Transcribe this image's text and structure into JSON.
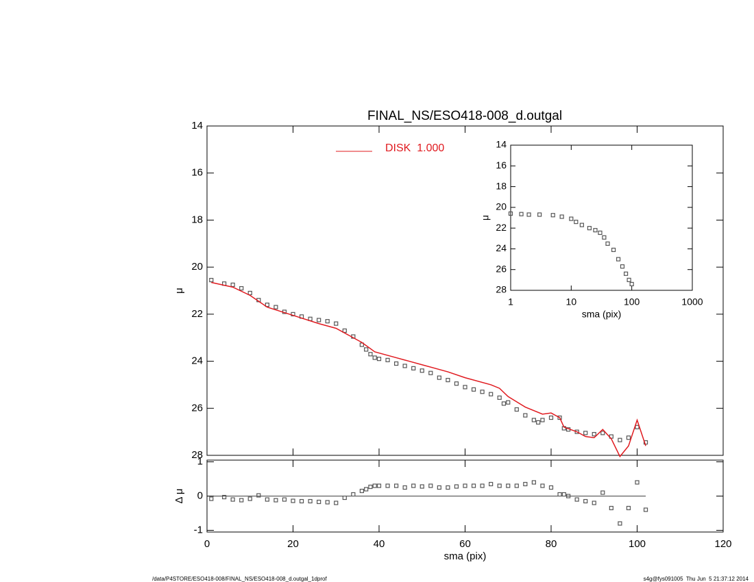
{
  "chart_data": [
    {
      "type": "scatter",
      "title": "FINAL_NS/ESO418-008_d.outgal",
      "ylabel": "μ",
      "xlim": [
        0,
        120
      ],
      "ylim": [
        14,
        28
      ],
      "y_inverted": true,
      "yticks": [
        14,
        16,
        18,
        20,
        22,
        24,
        26,
        28
      ],
      "series": [
        {
          "kind": "points",
          "color": "#555555",
          "x": [
            1,
            4,
            6,
            8,
            10,
            12,
            14,
            16,
            18,
            20,
            22,
            24,
            26,
            28,
            30,
            32,
            34,
            36,
            37,
            38,
            39,
            40,
            42,
            44,
            46,
            48,
            50,
            52,
            54,
            56,
            58,
            60,
            62,
            64,
            66,
            68,
            69,
            70,
            72,
            74,
            76,
            77,
            78,
            80,
            82,
            83,
            84,
            86,
            88,
            90,
            92,
            94,
            96,
            98,
            100,
            102
          ],
          "values": [
            20.55,
            20.7,
            20.75,
            20.9,
            21.1,
            21.4,
            21.6,
            21.7,
            21.9,
            22.0,
            22.1,
            22.2,
            22.25,
            22.3,
            22.4,
            22.7,
            22.95,
            23.3,
            23.5,
            23.7,
            23.85,
            23.9,
            23.95,
            24.1,
            24.2,
            24.3,
            24.4,
            24.5,
            24.7,
            24.8,
            24.95,
            25.1,
            25.2,
            25.3,
            25.4,
            25.55,
            25.8,
            25.75,
            26.05,
            26.3,
            26.5,
            26.6,
            26.5,
            26.4,
            26.4,
            26.85,
            26.9,
            27.0,
            27.05,
            27.1,
            27.05,
            27.2,
            27.35,
            27.25,
            26.8,
            27.45
          ]
        },
        {
          "kind": "line",
          "name": "DISK  1.000",
          "color": "#e0191e",
          "x": [
            1,
            6,
            10,
            14,
            20,
            26,
            30,
            36,
            39,
            44,
            46,
            47,
            50,
            56,
            60,
            66,
            68,
            70,
            74,
            78,
            80,
            82,
            83,
            86,
            88,
            90,
            92,
            94,
            96,
            98,
            100,
            102
          ],
          "values": [
            20.65,
            20.85,
            21.2,
            21.7,
            22.05,
            22.4,
            22.6,
            23.2,
            23.6,
            23.85,
            23.95,
            24.0,
            24.15,
            24.45,
            24.7,
            25.0,
            25.15,
            25.5,
            25.95,
            26.25,
            26.2,
            26.4,
            26.8,
            27.0,
            27.2,
            27.25,
            26.9,
            27.3,
            28.05,
            27.6,
            26.5,
            27.6
          ]
        }
      ]
    },
    {
      "type": "scatter",
      "xlabel": "sma (pix)",
      "ylabel": "Δ μ",
      "xlim": [
        0,
        120
      ],
      "xticks": [
        0,
        20,
        40,
        60,
        80,
        100,
        120
      ],
      "ylim": [
        -1.05,
        1.05
      ],
      "yticks": [
        -1,
        0,
        1
      ],
      "zero_line": true,
      "series": [
        {
          "kind": "points",
          "color": "#555555",
          "x": [
            1,
            4,
            6,
            8,
            10,
            12,
            14,
            16,
            18,
            20,
            22,
            24,
            26,
            28,
            30,
            32,
            34,
            36,
            37,
            38,
            39,
            40,
            42,
            44,
            46,
            48,
            50,
            52,
            54,
            56,
            58,
            60,
            62,
            64,
            66,
            68,
            70,
            72,
            74,
            76,
            78,
            80,
            82,
            83,
            84,
            86,
            88,
            90,
            92,
            94,
            96,
            98,
            100,
            102
          ],
          "values": [
            -0.08,
            -0.03,
            -0.1,
            -0.12,
            -0.08,
            0.02,
            -0.1,
            -0.12,
            -0.1,
            -0.14,
            -0.15,
            -0.15,
            -0.17,
            -0.18,
            -0.2,
            -0.05,
            0.05,
            0.15,
            0.2,
            0.27,
            0.3,
            0.3,
            0.3,
            0.3,
            0.25,
            0.3,
            0.28,
            0.3,
            0.25,
            0.25,
            0.28,
            0.3,
            0.3,
            0.3,
            0.35,
            0.3,
            0.3,
            0.3,
            0.35,
            0.4,
            0.3,
            0.25,
            0.05,
            0.05,
            0.0,
            -0.1,
            -0.15,
            -0.2,
            0.1,
            -0.35,
            -0.8,
            -0.35,
            0.4,
            -0.4
          ]
        }
      ]
    },
    {
      "type": "scatter",
      "xlabel": "sma (pix)",
      "ylabel": "μ",
      "xscale": "log",
      "xlim": [
        1,
        1000
      ],
      "xticks": [
        1,
        10,
        100,
        1000
      ],
      "ylim": [
        14,
        28
      ],
      "y_inverted": true,
      "yticks": [
        14,
        16,
        18,
        20,
        22,
        24,
        26,
        28
      ],
      "series": [
        {
          "kind": "points",
          "color": "#555555",
          "x": [
            1,
            1.5,
            2,
            3,
            5,
            7,
            10,
            12,
            15,
            20,
            25,
            30,
            35,
            40,
            50,
            60,
            70,
            80,
            90,
            100
          ],
          "values": [
            20.6,
            20.65,
            20.7,
            20.7,
            20.75,
            20.9,
            21.1,
            21.4,
            21.7,
            22.0,
            22.2,
            22.45,
            22.9,
            23.5,
            24.1,
            25.0,
            25.7,
            26.4,
            27.0,
            27.4
          ]
        }
      ]
    }
  ],
  "footer": {
    "left": "/data/P4STORE/ESO418-008/FINAL_NS/ESO418-008_d.outgal_1dprof",
    "right": "s4g@fys091005  Thu Jun  5 21:37:12 2014"
  }
}
